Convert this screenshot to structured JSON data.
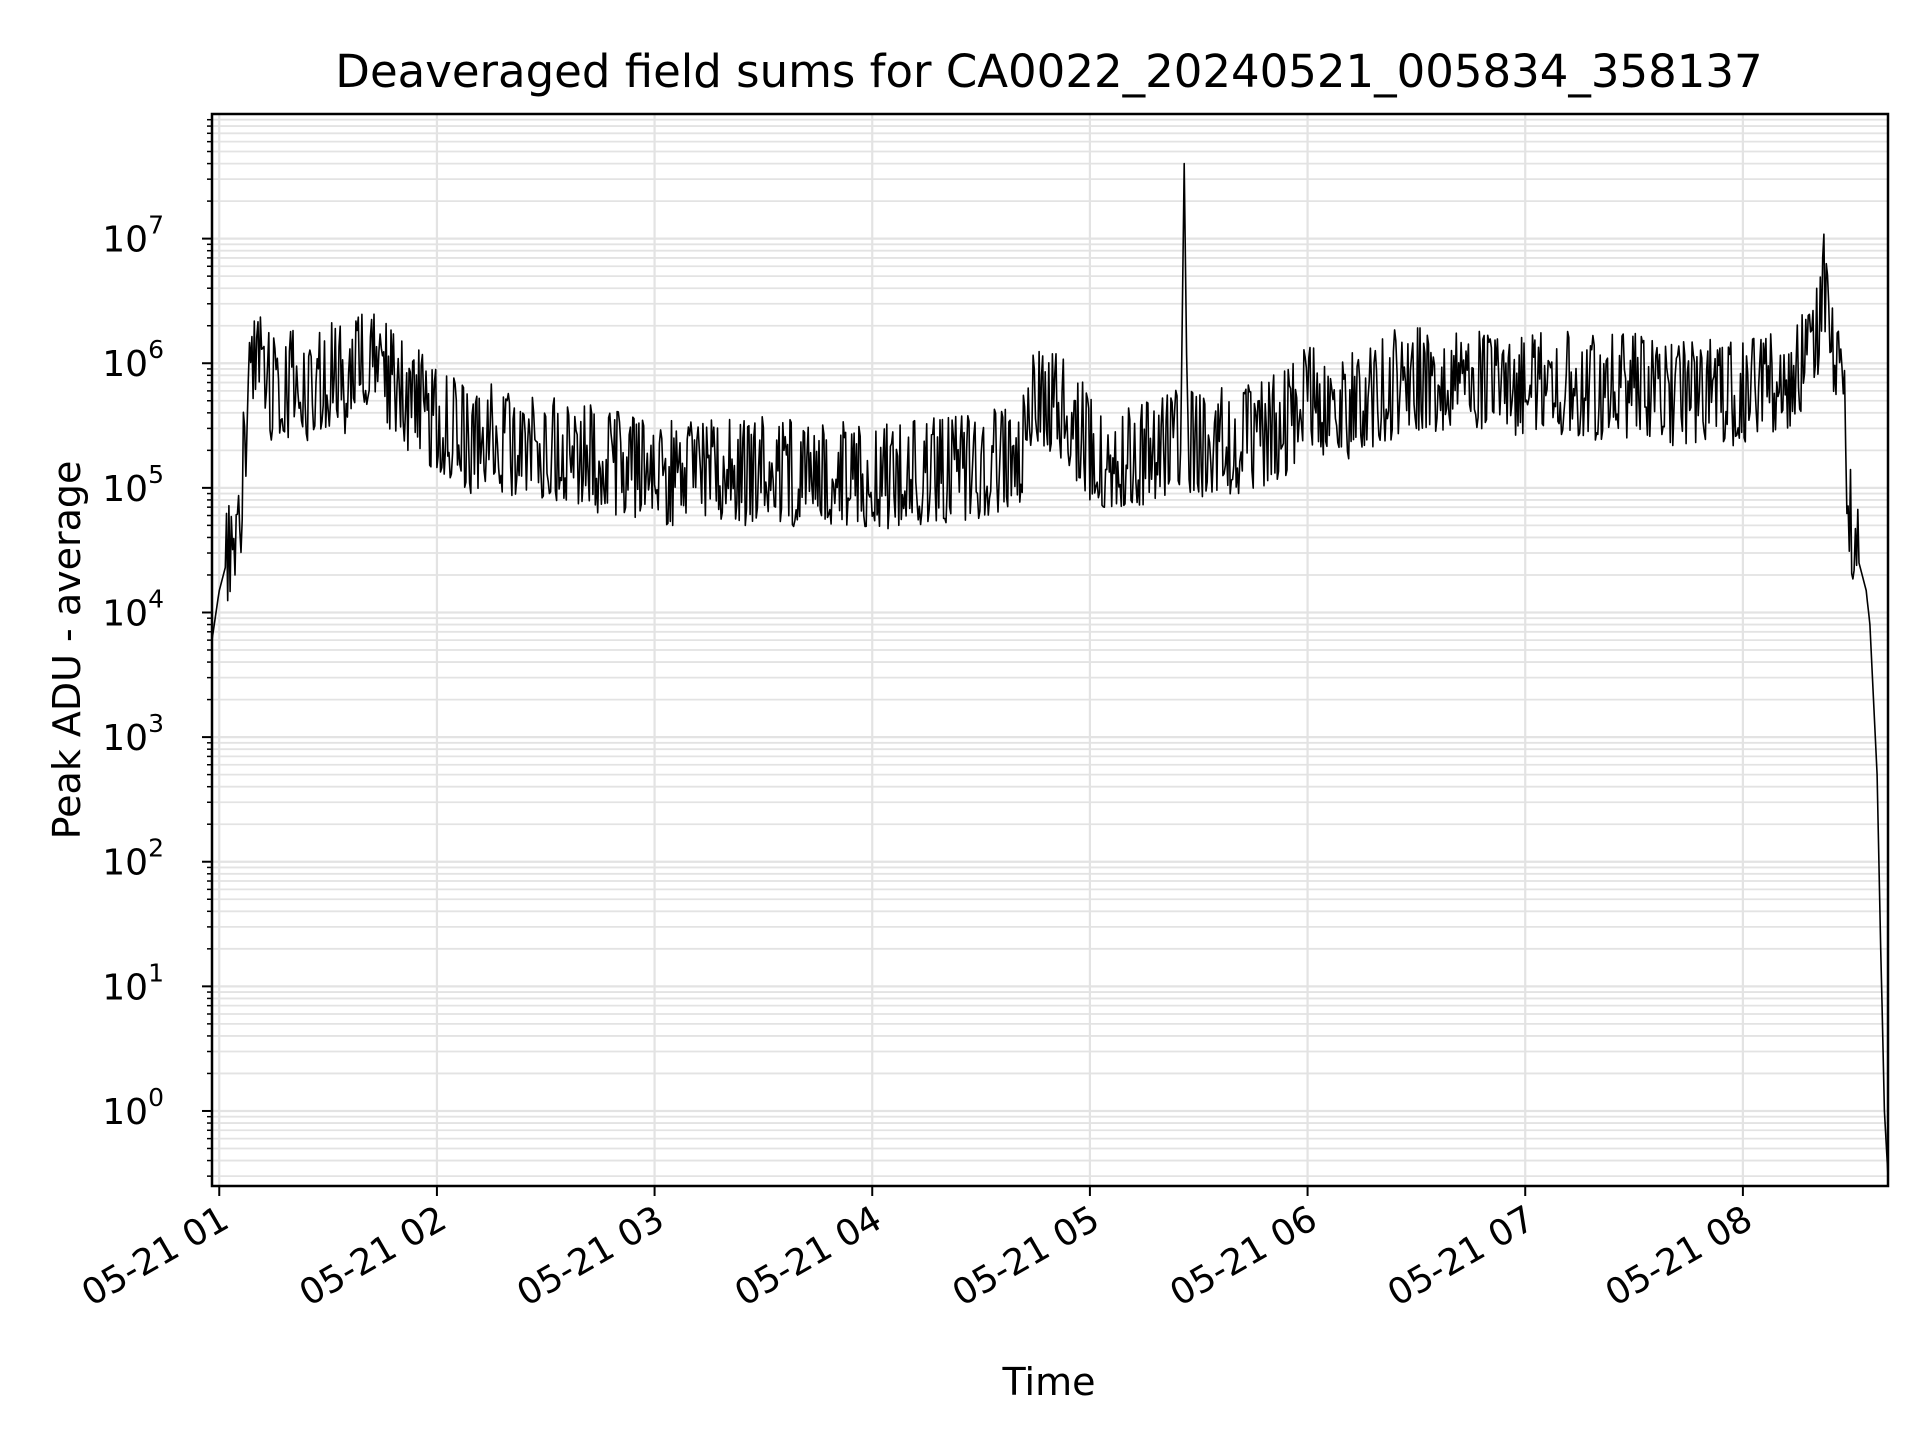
{
  "chart_data": {
    "type": "line",
    "title": "Deaveraged field sums for CA0022_20240521_005834_358137",
    "xlabel": "Time",
    "ylabel": "Peak ADU - average",
    "y_scale": "log",
    "grid": true,
    "grid_minor": true,
    "line_color": "#000000",
    "grid_color": "#e3e3e3",
    "xlim": [
      "2024-05-21 00:58",
      "2024-05-21 08:40"
    ],
    "ylim": [
      0.25,
      100000000
    ],
    "x_ticks": [
      "05-21 01",
      "05-21 02",
      "05-21 03",
      "05-21 04",
      "05-21 05",
      "05-21 06",
      "05-21 07",
      "05-21 08"
    ],
    "y_ticks": [
      {
        "base": "10",
        "exp": "0"
      },
      {
        "base": "10",
        "exp": "1"
      },
      {
        "base": "10",
        "exp": "2"
      },
      {
        "base": "10",
        "exp": "3"
      },
      {
        "base": "10",
        "exp": "4"
      },
      {
        "base": "10",
        "exp": "5"
      },
      {
        "base": "10",
        "exp": "6"
      },
      {
        "base": "10",
        "exp": "7"
      }
    ],
    "series": [
      {
        "x": [
          "00:58",
          "01:00",
          "01:02",
          "01:04",
          "01:06",
          "01:08",
          "01:10",
          "01:15",
          "01:20",
          "01:25",
          "01:30",
          "01:35",
          "01:40",
          "01:45",
          "01:50",
          "01:55",
          "02:00",
          "02:05",
          "02:10",
          "02:15",
          "02:20",
          "02:25",
          "02:30",
          "02:35",
          "02:40",
          "02:45",
          "02:50",
          "02:55",
          "03:00",
          "03:10",
          "03:20",
          "03:30",
          "03:40",
          "03:50",
          "04:00",
          "04:10",
          "04:20",
          "04:30",
          "04:40",
          "04:45",
          "04:50",
          "04:55",
          "05:00",
          "05:05",
          "05:10",
          "05:15",
          "05:20",
          "05:25",
          "05:26",
          "05:27",
          "05:30",
          "05:35",
          "05:40",
          "05:45",
          "05:50",
          "05:55",
          "06:00",
          "06:05",
          "06:10",
          "06:15",
          "06:20",
          "06:25",
          "06:30",
          "06:35",
          "06:40",
          "06:45",
          "06:50",
          "06:55",
          "07:00",
          "07:10",
          "07:20",
          "07:30",
          "07:40",
          "07:50",
          "08:00",
          "08:05",
          "08:10",
          "08:15",
          "08:20",
          "08:22",
          "08:25",
          "08:28",
          "08:30",
          "08:32",
          "08:34",
          "08:35",
          "08:36",
          "08:37",
          "08:38",
          "08:39",
          "08:40"
        ],
        "y": [
          6000,
          15000,
          25000,
          30000,
          60000,
          600000,
          900000,
          500000,
          600000,
          500000,
          700000,
          600000,
          900000,
          800000,
          500000,
          400000,
          300000,
          250000,
          200000,
          220000,
          200000,
          180000,
          170000,
          160000,
          150000,
          140000,
          130000,
          120000,
          120000,
          110000,
          110000,
          120000,
          110000,
          110000,
          100000,
          110000,
          120000,
          130000,
          150000,
          500000,
          400000,
          300000,
          180000,
          150000,
          160000,
          150000,
          170000,
          200000,
          40000000,
          200000,
          180000,
          200000,
          200000,
          220000,
          250000,
          300000,
          500000,
          400000,
          350000,
          450000,
          500000,
          600000,
          600000,
          650000,
          650000,
          700000,
          650000,
          600000,
          600000,
          600000,
          550000,
          550000,
          500000,
          500000,
          500000,
          550000,
          600000,
          700000,
          1100000,
          4500000,
          1000000,
          300000,
          30000,
          25000,
          15000,
          8000,
          2000,
          500,
          20,
          1,
          0.3
        ]
      }
    ]
  }
}
